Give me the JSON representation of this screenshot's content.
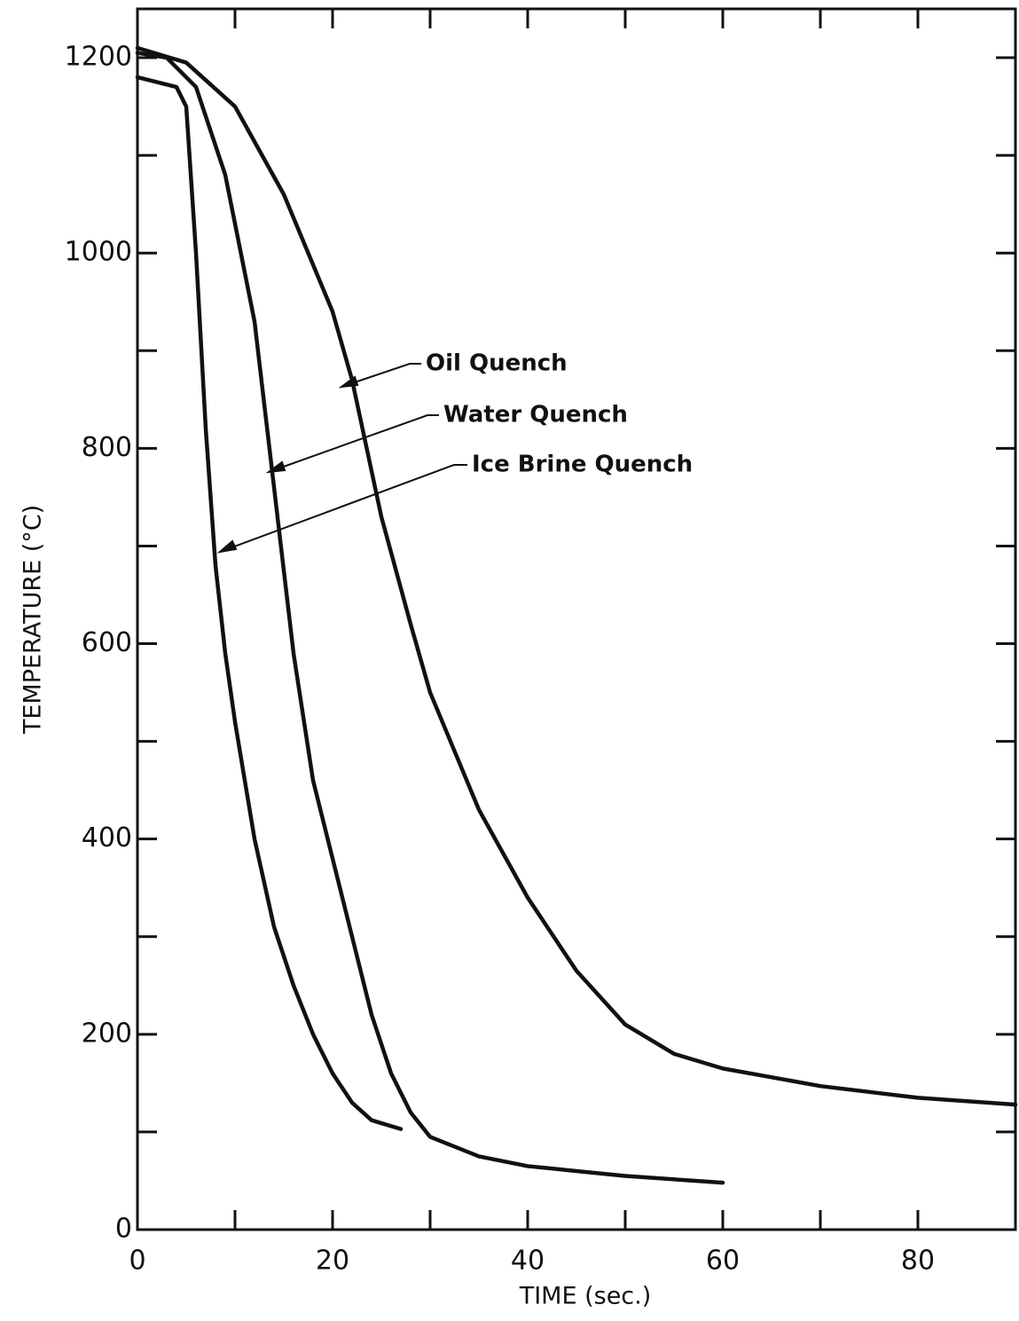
{
  "chart_data": {
    "type": "line",
    "xlabel": "TIME (sec.)",
    "ylabel": "TEMPERATURE (°C)",
    "xlim": [
      0,
      90
    ],
    "ylim": [
      0,
      1250
    ],
    "xticks": [
      0,
      20,
      40,
      60,
      80
    ],
    "yticks": [
      0,
      200,
      400,
      600,
      800,
      1000,
      1200
    ],
    "minor_xticks": [
      10,
      30,
      50,
      70,
      90
    ],
    "minor_yticks": [
      100,
      300,
      500,
      700,
      900,
      1100
    ],
    "color": "#111111",
    "series": [
      {
        "name": "Oil Quench",
        "x": [
          0,
          5,
          10,
          15,
          20,
          22,
          25,
          28,
          30,
          35,
          40,
          45,
          50,
          55,
          60,
          70,
          80,
          90
        ],
        "values": [
          1210,
          1195,
          1150,
          1060,
          940,
          870,
          730,
          620,
          550,
          430,
          340,
          265,
          210,
          180,
          165,
          147,
          135,
          128
        ]
      },
      {
        "name": "Water Quench",
        "x": [
          0,
          3,
          6,
          9,
          12,
          14,
          16,
          18,
          20,
          22,
          24,
          26,
          28,
          30,
          35,
          40,
          50,
          60
        ],
        "values": [
          1205,
          1200,
          1170,
          1080,
          930,
          760,
          590,
          460,
          380,
          300,
          220,
          160,
          120,
          95,
          75,
          65,
          55,
          48
        ]
      },
      {
        "name": "Ice Brine Quench",
        "x": [
          0,
          4,
          5,
          6,
          7,
          8,
          9,
          10,
          12,
          14,
          16,
          18,
          20,
          22,
          24,
          27
        ],
        "values": [
          1180,
          1170,
          1150,
          1000,
          820,
          680,
          590,
          520,
          400,
          310,
          250,
          200,
          160,
          130,
          112,
          103
        ]
      }
    ]
  }
}
